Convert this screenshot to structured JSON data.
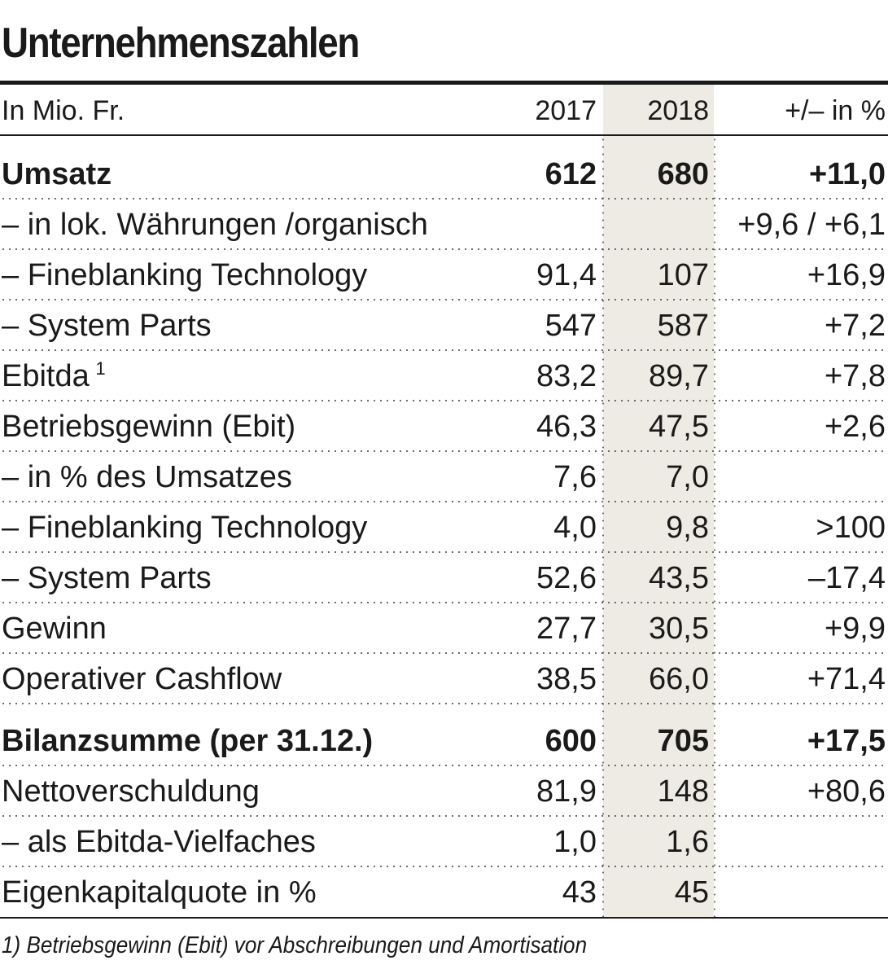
{
  "title": "Unternehmenszahlen",
  "header": {
    "label": "In Mio. Fr.",
    "col_2017": "2017",
    "col_2018": "2018",
    "col_pct": "+/– in %"
  },
  "rows": [
    {
      "label": "Umsatz",
      "sup": "",
      "v2017": "612",
      "v2018": "680",
      "pct": "+11,0",
      "bold": true
    },
    {
      "label": "– in lok. Währungen /organisch",
      "sup": "",
      "v2017": "",
      "v2018": "",
      "pct": "+9,6 / +6,1",
      "bold": false
    },
    {
      "label": "– Fineblanking Technology",
      "sup": "",
      "v2017": "91,4",
      "v2018": "107",
      "pct": "+16,9",
      "bold": false
    },
    {
      "label": "– System Parts",
      "sup": "",
      "v2017": "547",
      "v2018": "587",
      "pct": "+7,2",
      "bold": false
    },
    {
      "label": "Ebitda",
      "sup": "1",
      "v2017": "83,2",
      "v2018": "89,7",
      "pct": "+7,8",
      "bold": false
    },
    {
      "label": "Betriebsgewinn (Ebit)",
      "sup": "",
      "v2017": "46,3",
      "v2018": "47,5",
      "pct": "+2,6",
      "bold": false
    },
    {
      "label": "– in % des Umsatzes",
      "sup": "",
      "v2017": "7,6",
      "v2018": "7,0",
      "pct": "",
      "bold": false
    },
    {
      "label": "– Fineblanking Technology",
      "sup": "",
      "v2017": "4,0",
      "v2018": "9,8",
      "pct": ">100",
      "bold": false
    },
    {
      "label": "– System Parts",
      "sup": "",
      "v2017": "52,6",
      "v2018": "43,5",
      "pct": "–17,4",
      "bold": false
    },
    {
      "label": "Gewinn",
      "sup": "",
      "v2017": "27,7",
      "v2018": "30,5",
      "pct": "+9,9",
      "bold": false
    },
    {
      "label": "Operativer Cashflow",
      "sup": "",
      "v2017": "38,5",
      "v2018": "66,0",
      "pct": "+71,4",
      "bold": false
    },
    {
      "label": "Bilanzsumme (per 31.12.)",
      "sup": "",
      "v2017": "600",
      "v2018": "705",
      "pct": "+17,5",
      "bold": true
    },
    {
      "label": "Nettoverschuldung",
      "sup": "",
      "v2017": "81,9",
      "v2018": "148",
      "pct": "+80,6",
      "bold": false
    },
    {
      "label": "– als Ebitda-Vielfaches",
      "sup": "",
      "v2017": "1,0",
      "v2018": "1,6",
      "pct": "",
      "bold": false
    },
    {
      "label": "Eigenkapitalquote in %",
      "sup": "",
      "v2017": "43",
      "v2018": "45",
      "pct": "",
      "bold": false
    }
  ],
  "footnote": "1) Betriebsgewinn (Ebit) vor Abschreibungen und Amortisation"
}
